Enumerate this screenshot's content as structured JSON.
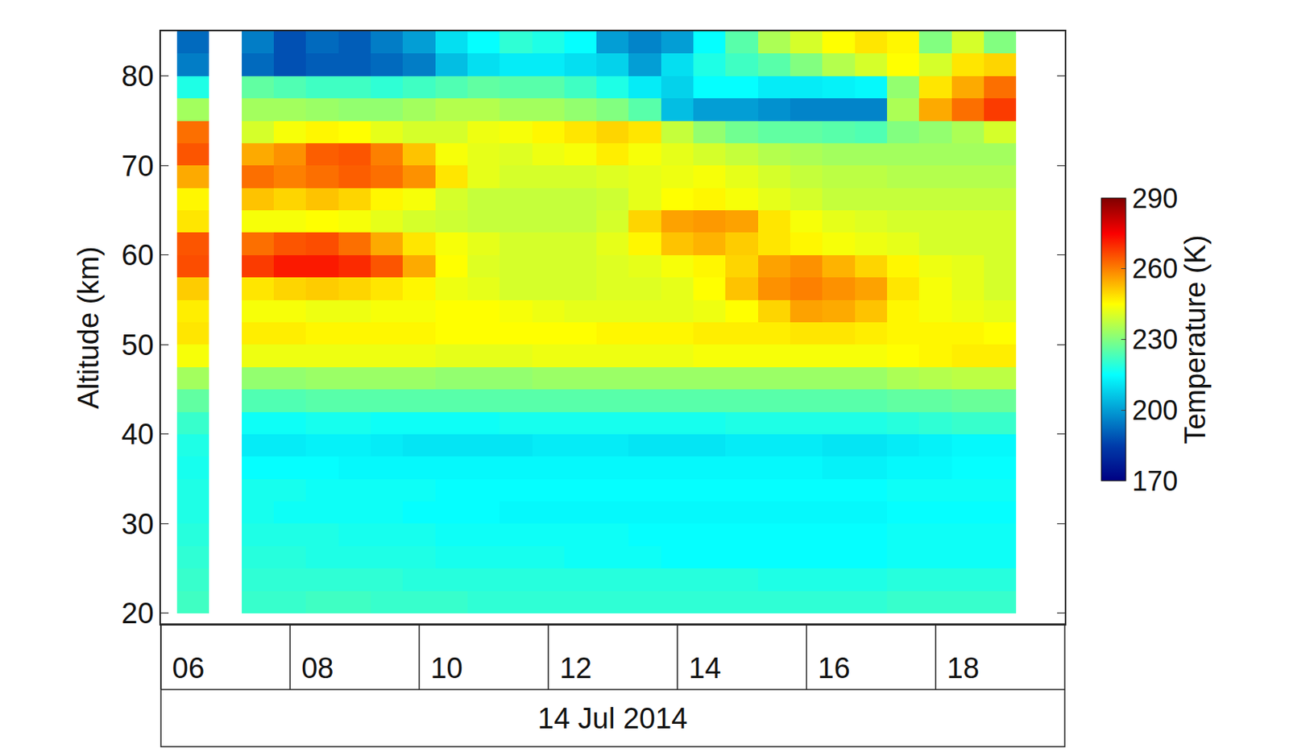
{
  "chart_data": {
    "type": "heatmap",
    "ylabel": "Altitude (km)",
    "xlabel": "14 Jul 2014",
    "xlim": [
      "2014-07-14 06:00",
      "2014-07-14 20:00"
    ],
    "xticks": [
      {
        "value": "2014-07-14 06:00",
        "label": "06"
      },
      {
        "value": "2014-07-14 08:00",
        "label": "08"
      },
      {
        "value": "2014-07-14 10:00",
        "label": "10"
      },
      {
        "value": "2014-07-14 12:00",
        "label": "12"
      },
      {
        "value": "2014-07-14 14:00",
        "label": "14"
      },
      {
        "value": "2014-07-14 16:00",
        "label": "16"
      },
      {
        "value": "2014-07-14 18:00",
        "label": "18"
      }
    ],
    "ylim": [
      18.8,
      85
    ],
    "yticks": [
      20,
      30,
      40,
      50,
      60,
      70,
      80
    ],
    "grid": false,
    "colorbar": {
      "label": "Temperature (K)",
      "range": [
        170,
        290
      ],
      "ticks": [
        170,
        200,
        230,
        260,
        290
      ]
    },
    "x": [
      "2014-07-14 06:30",
      "2014-07-14 07:00",
      "2014-07-14 07:30",
      "2014-07-14 08:00",
      "2014-07-14 08:30",
      "2014-07-14 09:00",
      "2014-07-14 09:30",
      "2014-07-14 10:00",
      "2014-07-14 10:30",
      "2014-07-14 11:00",
      "2014-07-14 11:30",
      "2014-07-14 12:00",
      "2014-07-14 12:30",
      "2014-07-14 13:00",
      "2014-07-14 13:30",
      "2014-07-14 14:00",
      "2014-07-14 14:30",
      "2014-07-14 15:00",
      "2014-07-14 15:30",
      "2014-07-14 16:00",
      "2014-07-14 16:30",
      "2014-07-14 17:00",
      "2014-07-14 17:30",
      "2014-07-14 18:00",
      "2014-07-14 18:30",
      "2014-07-14 19:00"
    ],
    "y": [
      21.25,
      23.75,
      26.25,
      28.75,
      31.25,
      33.75,
      36.25,
      38.75,
      41.25,
      43.75,
      46.25,
      48.75,
      51.25,
      53.75,
      56.25,
      58.75,
      61.25,
      63.75,
      66.25,
      68.75,
      71.25,
      73.75,
      76.25,
      78.75,
      81.25,
      83.75
    ],
    "values": [
      [
        222,
        null,
        221,
        221,
        222,
        222,
        221,
        221,
        221,
        220,
        220,
        220,
        220,
        220,
        220,
        220,
        220,
        220,
        220,
        220,
        220,
        220,
        221,
        221,
        221,
        221
      ],
      [
        221,
        null,
        220,
        220,
        220,
        220,
        220,
        219,
        219,
        219,
        219,
        219,
        219,
        219,
        219,
        219,
        219,
        219,
        218,
        218,
        218,
        218,
        219,
        219,
        219,
        219
      ],
      [
        220,
        null,
        219,
        219,
        218,
        218,
        218,
        218,
        217,
        217,
        217,
        217,
        216,
        216,
        216,
        215,
        215,
        215,
        215,
        215,
        215,
        215,
        216,
        216,
        216,
        216
      ],
      [
        219,
        null,
        218,
        218,
        218,
        217,
        217,
        217,
        216,
        216,
        216,
        216,
        216,
        216,
        215,
        215,
        215,
        215,
        215,
        215,
        215,
        215,
        216,
        216,
        216,
        216
      ],
      [
        218,
        null,
        217,
        216,
        216,
        216,
        216,
        215,
        215,
        215,
        214,
        214,
        214,
        214,
        214,
        214,
        214,
        214,
        214,
        214,
        214,
        214,
        215,
        215,
        215,
        215
      ],
      [
        218,
        null,
        217,
        217,
        216,
        216,
        216,
        216,
        215,
        215,
        215,
        215,
        215,
        215,
        215,
        215,
        215,
        215,
        215,
        215,
        215,
        215,
        216,
        216,
        216,
        216
      ],
      [
        217,
        null,
        215,
        215,
        215,
        214,
        214,
        214,
        214,
        214,
        214,
        214,
        214,
        214,
        214,
        214,
        214,
        214,
        214,
        214,
        213,
        213,
        214,
        214,
        215,
        215
      ],
      [
        218,
        null,
        212,
        212,
        213,
        213,
        212,
        211,
        211,
        211,
        211,
        212,
        212,
        212,
        211,
        211,
        211,
        212,
        212,
        212,
        211,
        211,
        212,
        213,
        214,
        214
      ],
      [
        221,
        null,
        216,
        216,
        217,
        217,
        216,
        216,
        216,
        216,
        217,
        217,
        217,
        217,
        217,
        217,
        217,
        218,
        218,
        218,
        218,
        218,
        219,
        220,
        221,
        221
      ],
      [
        226,
        null,
        224,
        224,
        225,
        225,
        225,
        225,
        225,
        225,
        225,
        225,
        225,
        225,
        225,
        225,
        225,
        225,
        225,
        225,
        225,
        225,
        226,
        226,
        227,
        227
      ],
      [
        234,
        null,
        232,
        232,
        233,
        233,
        233,
        233,
        232,
        232,
        232,
        233,
        233,
        233,
        233,
        233,
        233,
        233,
        233,
        233,
        233,
        233,
        235,
        236,
        237,
        237
      ],
      [
        244,
        null,
        243,
        243,
        243,
        243,
        243,
        243,
        242,
        242,
        242,
        243,
        243,
        243,
        243,
        243,
        244,
        244,
        244,
        244,
        244,
        244,
        245,
        246,
        247,
        247
      ],
      [
        248,
        null,
        247,
        247,
        246,
        246,
        246,
        246,
        245,
        245,
        245,
        245,
        245,
        246,
        246,
        246,
        247,
        247,
        247,
        248,
        248,
        247,
        246,
        246,
        246,
        245
      ],
      [
        247,
        null,
        244,
        244,
        243,
        243,
        244,
        244,
        245,
        245,
        244,
        243,
        242,
        242,
        242,
        242,
        243,
        245,
        250,
        256,
        255,
        252,
        246,
        244,
        243,
        242
      ],
      [
        251,
        null,
        248,
        250,
        251,
        250,
        248,
        246,
        243,
        242,
        240,
        240,
        240,
        241,
        241,
        242,
        245,
        252,
        258,
        260,
        258,
        256,
        248,
        244,
        242,
        240
      ],
      [
        266,
        null,
        268,
        272,
        272,
        270,
        265,
        255,
        245,
        241,
        240,
        240,
        240,
        241,
        242,
        244,
        246,
        250,
        256,
        258,
        254,
        250,
        246,
        243,
        242,
        240
      ],
      [
        265,
        null,
        262,
        265,
        266,
        262,
        255,
        248,
        244,
        242,
        240,
        240,
        240,
        242,
        246,
        252,
        254,
        251,
        248,
        246,
        244,
        243,
        242,
        240,
        240,
        240
      ],
      [
        248,
        null,
        244,
        244,
        245,
        244,
        242,
        240,
        239,
        238,
        238,
        238,
        238,
        240,
        250,
        256,
        257,
        256,
        248,
        244,
        242,
        241,
        240,
        240,
        240,
        240
      ],
      [
        246,
        null,
        252,
        250,
        252,
        250,
        246,
        244,
        240,
        238,
        238,
        238,
        238,
        239,
        242,
        245,
        246,
        244,
        242,
        240,
        238,
        238,
        238,
        238,
        238,
        238
      ],
      [
        255,
        null,
        262,
        260,
        262,
        264,
        262,
        258,
        248,
        242,
        240,
        240,
        240,
        241,
        242,
        243,
        244,
        242,
        240,
        238,
        237,
        237,
        236,
        236,
        236,
        236
      ],
      [
        265,
        null,
        255,
        258,
        264,
        265,
        260,
        252,
        244,
        242,
        241,
        243,
        244,
        247,
        244,
        242,
        240,
        238,
        236,
        235,
        234,
        234,
        234,
        234,
        234,
        234
      ],
      [
        262,
        null,
        240,
        244,
        246,
        245,
        242,
        240,
        240,
        243,
        244,
        246,
        248,
        250,
        248,
        238,
        232,
        228,
        226,
        226,
        225,
        224,
        230,
        232,
        235,
        240
      ],
      [
        234,
        null,
        234,
        234,
        233,
        232,
        232,
        234,
        236,
        236,
        234,
        234,
        232,
        230,
        225,
        205,
        200,
        200,
        198,
        196,
        196,
        196,
        235,
        255,
        262,
        268
      ],
      [
        218,
        null,
        226,
        224,
        222,
        222,
        220,
        222,
        224,
        226,
        225,
        225,
        222,
        218,
        212,
        208,
        215,
        215,
        212,
        212,
        213,
        214,
        232,
        248,
        255,
        262
      ],
      [
        195,
        null,
        192,
        188,
        190,
        190,
        192,
        195,
        205,
        210,
        212,
        212,
        210,
        208,
        200,
        210,
        218,
        222,
        225,
        230,
        236,
        240,
        245,
        240,
        248,
        250
      ],
      [
        192,
        null,
        195,
        188,
        192,
        190,
        195,
        200,
        210,
        215,
        220,
        218,
        215,
        200,
        196,
        200,
        215,
        225,
        235,
        240,
        245,
        248,
        246,
        230,
        240,
        230
      ]
    ]
  }
}
